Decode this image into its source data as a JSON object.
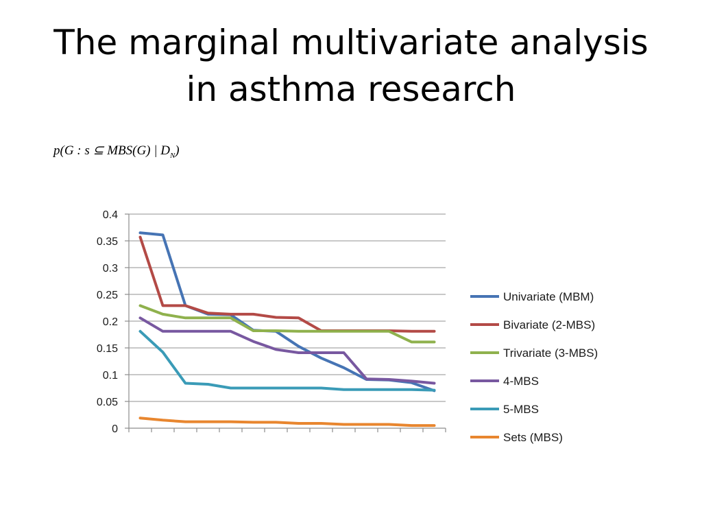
{
  "slide": {
    "title_line1": "The marginal multivariate analysis",
    "title_line2": "in asthma research",
    "formula": {
      "prefix": "p(G : s ⊆ MBS(G) | D",
      "subscript": "N",
      "suffix": ")"
    }
  },
  "chart_data": {
    "type": "line",
    "ylim": [
      0,
      0.4
    ],
    "yticks": [
      "0",
      "0.05",
      "0.1",
      "0.15",
      "0.2",
      "0.25",
      "0.3",
      "0.35",
      "0.4"
    ],
    "grid": true,
    "legend_position": "right",
    "x_count": 14,
    "series": [
      {
        "name": "Univariate (MBM)",
        "color": "#4674b4",
        "values": [
          0.365,
          0.361,
          0.229,
          0.213,
          0.212,
          0.183,
          0.181,
          0.153,
          0.131,
          0.113,
          0.091,
          0.09,
          0.085,
          0.07
        ]
      },
      {
        "name": "Bivariate (2-MBS)",
        "color": "#b34a46",
        "values": [
          0.357,
          0.229,
          0.229,
          0.215,
          0.213,
          0.213,
          0.207,
          0.206,
          0.182,
          0.182,
          0.182,
          0.182,
          0.181,
          0.181
        ]
      },
      {
        "name": "Trivariate (3-MBS)",
        "color": "#8fb14d",
        "values": [
          0.229,
          0.213,
          0.206,
          0.206,
          0.206,
          0.182,
          0.182,
          0.181,
          0.181,
          0.181,
          0.181,
          0.181,
          0.161,
          0.161
        ]
      },
      {
        "name": "4-MBS",
        "color": "#7858a0",
        "values": [
          0.206,
          0.181,
          0.181,
          0.181,
          0.181,
          0.162,
          0.147,
          0.141,
          0.141,
          0.141,
          0.092,
          0.091,
          0.088,
          0.084
        ]
      },
      {
        "name": "5-MBS",
        "color": "#3a9bb7",
        "values": [
          0.181,
          0.142,
          0.084,
          0.082,
          0.075,
          0.075,
          0.075,
          0.075,
          0.075,
          0.072,
          0.072,
          0.072,
          0.072,
          0.071
        ]
      },
      {
        "name": "Sets (MBS)",
        "color": "#e8862f",
        "values": [
          0.019,
          0.015,
          0.012,
          0.012,
          0.012,
          0.011,
          0.011,
          0.009,
          0.009,
          0.007,
          0.007,
          0.007,
          0.005,
          0.005
        ]
      }
    ]
  }
}
